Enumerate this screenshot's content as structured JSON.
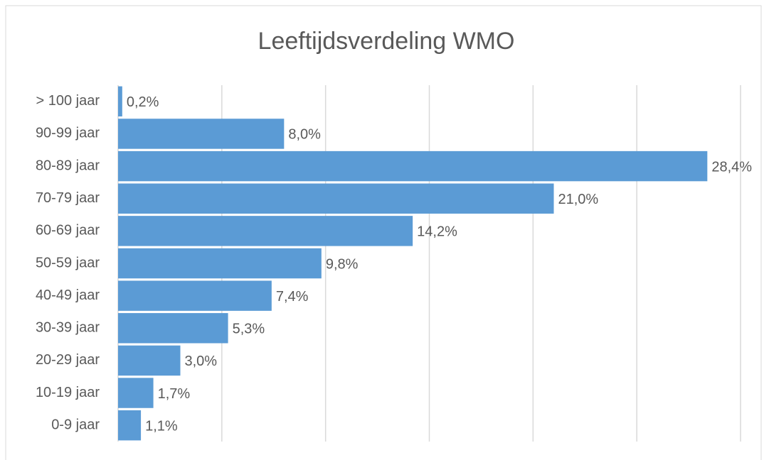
{
  "chart_data": {
    "type": "bar",
    "orientation": "horizontal",
    "title": "Leeftijdsverdeling WMO",
    "categories": [
      "> 100 jaar",
      "90-99 jaar",
      "80-89 jaar",
      "70-79 jaar",
      "60-69 jaar",
      "50-59 jaar",
      "40-49 jaar",
      "30-39 jaar",
      "20-29 jaar",
      "10-19 jaar",
      "0-9 jaar"
    ],
    "values": [
      0.2,
      8.0,
      28.4,
      21.0,
      14.2,
      9.8,
      7.4,
      5.3,
      3.0,
      1.7,
      1.1
    ],
    "value_labels": [
      "0,2%",
      "8,0%",
      "28,4%",
      "21,0%",
      "14,2%",
      "9,8%",
      "7,4%",
      "5,3%",
      "3,0%",
      "1,7%",
      "1,1%"
    ],
    "color": "#5b9bd5",
    "xlim": [
      0,
      30
    ],
    "xticks": [
      0,
      5,
      10,
      15,
      20,
      25,
      30
    ],
    "grid": true
  }
}
